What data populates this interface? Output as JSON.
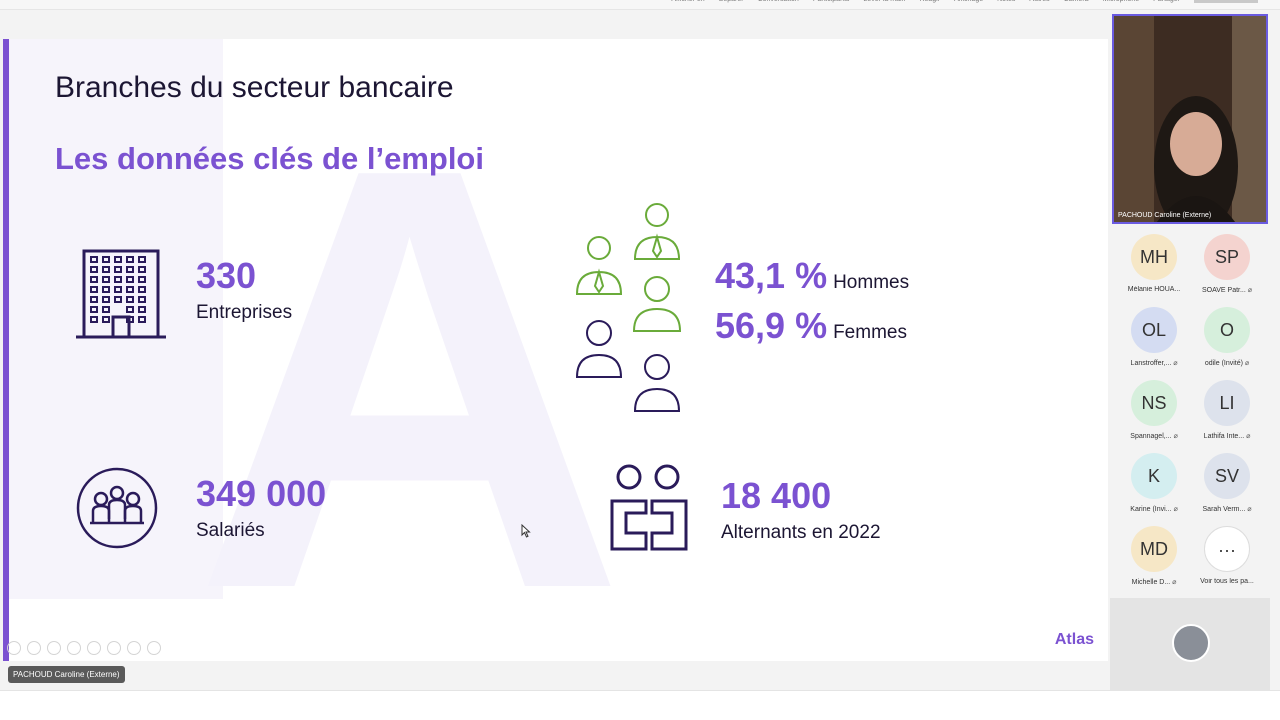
{
  "slide": {
    "title": "Branches du secteur bancaire",
    "subtitle": "Les données clés de l’emploi",
    "stats": {
      "companies": {
        "value": "330",
        "label": "Entreprises",
        "icon": "office-building-icon"
      },
      "gender": {
        "men_value": "43,1 %",
        "men_label": "Hommes",
        "women_value": "56,9 %",
        "women_label": "Femmes",
        "icon": "people-group-icon"
      },
      "employees": {
        "value": "349 000",
        "label": "Salariés",
        "icon": "team-circle-icon"
      },
      "apprentices": {
        "value": "18 400",
        "label": "Alternants en 2022",
        "icon": "two-persons-icon"
      }
    },
    "brand": "Atlas",
    "colors": {
      "accent": "#7b52d1",
      "icon_green": "#6aab3a",
      "icon_dark": "#2a1b5a",
      "text": "#1c1633"
    }
  },
  "presenter_tag": "PACHOUD Caroline (Externe)",
  "meeting": {
    "toolbar_items": [
      "Afficher en",
      "Séparer",
      "Conversation",
      "Participants",
      "Lever la main",
      "Réagir",
      "Affichage",
      "Notes",
      "Autres",
      "Caméra",
      "Microphone",
      "Partager"
    ],
    "video": {
      "caption": "PACHOUD Caroline (Externe)"
    },
    "participants": [
      {
        "initials": "MH",
        "name": "Mélanie HOUA...",
        "muted": false,
        "color": "#f6e7c6"
      },
      {
        "initials": "SP",
        "name": "SOAVE Patr...",
        "muted": true,
        "color": "#f4d3cf"
      },
      {
        "initials": "OL",
        "name": "Lanstroffer,...",
        "muted": true,
        "color": "#d4dcf2"
      },
      {
        "initials": "O",
        "name": "odile (Invité)",
        "muted": true,
        "color": "#d6efdc"
      },
      {
        "initials": "NS",
        "name": "Spannagel,...",
        "muted": true,
        "color": "#d6efdc"
      },
      {
        "initials": "LI",
        "name": "Lathifa Inte...",
        "muted": true,
        "color": "#dde2ec"
      },
      {
        "initials": "K",
        "name": "Karine (Invi...",
        "muted": true,
        "color": "#d4eef0"
      },
      {
        "initials": "SV",
        "name": "Sarah Verm...",
        "muted": true,
        "color": "#dde2ec"
      },
      {
        "initials": "MD",
        "name": "Michelle D...",
        "muted": true,
        "color": "#f6e7c6"
      },
      {
        "initials": "···",
        "name": "Voir tous les pa...",
        "muted": false,
        "color": "#ffffff"
      }
    ]
  }
}
